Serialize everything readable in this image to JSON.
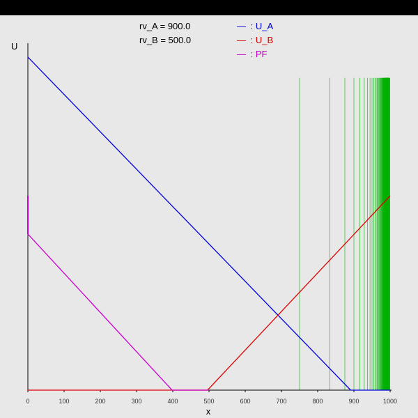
{
  "chart_data": {
    "type": "line",
    "xlabel": "x",
    "ylabel": "U",
    "xlim": [
      0,
      1000
    ],
    "xticks": [
      "0",
      "100",
      "200",
      "300",
      "400",
      "500",
      "600",
      "700",
      "800",
      "900",
      "1000"
    ],
    "params": [
      {
        "text": "rv_A = 900.0"
      },
      {
        "text": "rv_B = 500.0"
      }
    ],
    "legend": [
      {
        "symbol": "—",
        "label": ": U_A",
        "color": "#0000cc"
      },
      {
        "symbol": "—",
        "label": ": U_B",
        "color": "#cc0000"
      },
      {
        "symbol": "—",
        "label": ": PF",
        "color": "#bb00bb"
      }
    ],
    "series": [
      {
        "name": "U_A",
        "color": "#0000dd",
        "points": [
          [
            0,
            0.96
          ],
          [
            891,
            0
          ],
          [
            1000,
            0
          ]
        ]
      },
      {
        "name": "U_B",
        "color": "#dd0000",
        "points": [
          [
            0,
            0
          ],
          [
            496,
            0
          ],
          [
            1000,
            0.56
          ]
        ]
      },
      {
        "name": "PF",
        "color": "#cc00cc",
        "points": [
          [
            0,
            0.45
          ],
          [
            398,
            0
          ],
          [
            500,
            0
          ]
        ]
      }
    ],
    "pf_vertical_segment": {
      "x": 0,
      "y_from": 0.45,
      "y_to": 0.56
    },
    "vertical_lines": {
      "color": "#00b000",
      "y_top": 0.9
    }
  }
}
